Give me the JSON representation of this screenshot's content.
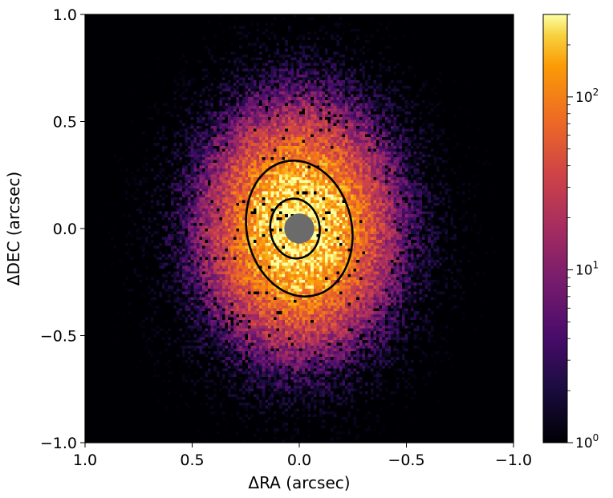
{
  "chart_data": {
    "type": "heatmap",
    "title": "",
    "xlabel": "ΔRA (arcsec)",
    "ylabel": "ΔDEC (arcsec)",
    "xlim": [
      1.0,
      -1.0
    ],
    "ylim": [
      -1.0,
      1.0
    ],
    "x_ticks": [
      {
        "value": 1.0,
        "label": "1.0"
      },
      {
        "value": 0.5,
        "label": "0.5"
      },
      {
        "value": 0.0,
        "label": "0.0"
      },
      {
        "value": -0.5,
        "label": "−0.5"
      },
      {
        "value": -1.0,
        "label": "−1.0"
      }
    ],
    "y_ticks": [
      {
        "value": 1.0,
        "label": "1.0"
      },
      {
        "value": 0.5,
        "label": "0.5"
      },
      {
        "value": 0.0,
        "label": "0.0"
      },
      {
        "value": -0.5,
        "label": "−0.5"
      },
      {
        "value": -1.0,
        "label": "−1.0"
      }
    ],
    "grid": false,
    "colormap": "inferno",
    "colorbar": {
      "scale": "log",
      "range": [
        1,
        300
      ],
      "ticks": [
        {
          "value": 1,
          "base": "10",
          "exp": "0"
        },
        {
          "value": 10,
          "base": "10",
          "exp": "1"
        },
        {
          "value": 100,
          "base": "10",
          "exp": "2"
        }
      ]
    },
    "intensity_model": {
      "peak": 300,
      "center": [
        0.0,
        0.0
      ],
      "sigma_x": 0.17,
      "sigma_y": 0.22,
      "halo_scale": 0.45,
      "halo_amp": 6,
      "background": 1.2,
      "grid_bins": 150
    },
    "mask": {
      "center": [
        0.0,
        0.0
      ],
      "radius": 0.07,
      "color": "#6b6b6b"
    },
    "contours": [
      {
        "name": "inner",
        "center": [
          0.02,
          0.0
        ],
        "rx": 0.115,
        "ry": 0.14,
        "rotation_deg": -8
      },
      {
        "name": "outer",
        "center": [
          0.0,
          0.0
        ],
        "rx": 0.245,
        "ry": 0.32,
        "rotation_deg": -12
      }
    ]
  }
}
